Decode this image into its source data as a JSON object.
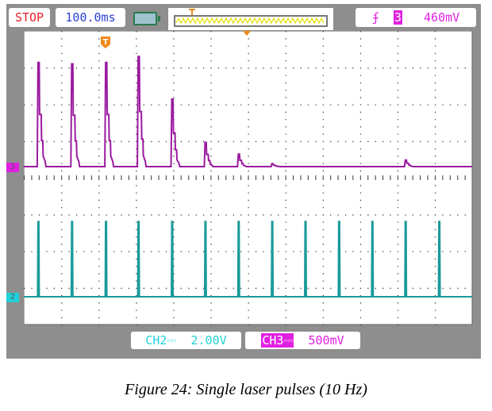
{
  "top_bar": {
    "run_state": "STOP",
    "timebase": "100.0ms",
    "trigger_edge_icon": "rising-edge-icon",
    "trigger_source": "3",
    "trigger_level": "460mV",
    "battery_icon": "battery-icon"
  },
  "markers": {
    "ch3": "3",
    "ch2": "2",
    "trigger": "T"
  },
  "bottom_bar": {
    "ch2_label": "CH2",
    "ch2_coupling": "⎓",
    "ch2_scale": "2.00V",
    "ch3_label": "CH3",
    "ch3_coupling": "⎓",
    "ch3_scale": "500mV"
  },
  "colors": {
    "ch3": "#9b1aa0",
    "ch2": "#1a9a9a",
    "stop": "#e8202a",
    "timebase": "#2a3fd0",
    "trigger": "#f08a1a"
  },
  "caption": "Figure 24: Single laser pulses (10 Hz)",
  "chart_data": {
    "type": "line",
    "x_unit": "ms",
    "xlim": [
      0,
      1200
    ],
    "grid": true,
    "divisions": [
      12,
      8
    ],
    "series": [
      {
        "name": "CH3",
        "scale_per_div_V": 0.5,
        "pulse_times_ms": [
          38,
          128,
          219,
          306,
          396,
          485,
          574,
          664,
          753,
          843,
          932,
          1021,
          1111
        ],
        "pulse_peaks_V": [
          1.42,
          1.4,
          1.42,
          1.5,
          0.92,
          0.33,
          0.17,
          0.04,
          0.0,
          0.0,
          0.0,
          0.09,
          0.0
        ]
      },
      {
        "name": "CH2",
        "scale_per_div_V": 2.0,
        "pulse_times_ms": [
          38,
          128,
          219,
          306,
          396,
          485,
          574,
          664,
          753,
          843,
          932,
          1021,
          1111
        ],
        "pulse_peaks_V": [
          4.1,
          4.1,
          4.1,
          4.1,
          4.1,
          4.1,
          4.1,
          4.1,
          4.1,
          4.1,
          4.1,
          4.1,
          4.1
        ]
      }
    ]
  }
}
